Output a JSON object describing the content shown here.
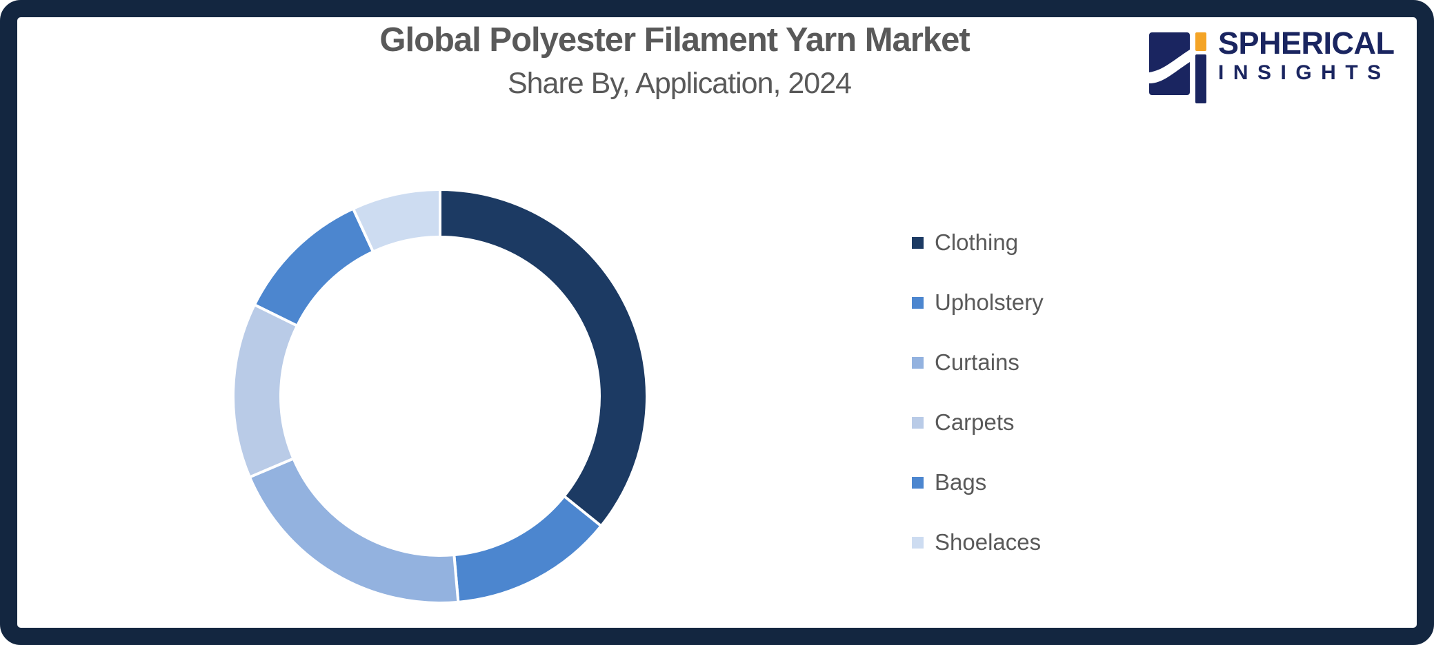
{
  "frame": {
    "border_color": "#132640",
    "background": "#FFFFFF"
  },
  "header": {
    "title": "Global Polyester Filament Yarn Market",
    "subtitle": "Share By, Application, 2024",
    "text_color": "#595959"
  },
  "logo": {
    "icon": "spherical-insights-logo",
    "line1": "SPHERICAL",
    "line2": "INSIGHTS",
    "navy": "#1A2560",
    "orange": "#F4A426"
  },
  "chart_data": {
    "type": "pie",
    "subtype": "donut",
    "title": "Global Polyester Filament Yarn Market",
    "subtitle": "Share By, Application, 2024",
    "categories": [
      "Clothing",
      "Upholstery",
      "Curtains",
      "Carpets",
      "Bags",
      "Shoelaces"
    ],
    "values": [
      35.8,
      12.8,
      20.0,
      13.7,
      10.8,
      6.9
    ],
    "values_are_percent": true,
    "data_labels_shown": false,
    "colors": [
      "#1C3A63",
      "#4C86CF",
      "#93B2DF",
      "#B9CBE7",
      "#4C86CF",
      "#CDDCF1"
    ],
    "start_angle_deg": 0,
    "direction": "clockwise",
    "inner_radius_ratio": 0.77,
    "segment_gap_color": "#FFFFFF",
    "legend_position": "right",
    "hole_color": "#FFFFFF"
  },
  "legend": {
    "text_color": "#595959"
  }
}
